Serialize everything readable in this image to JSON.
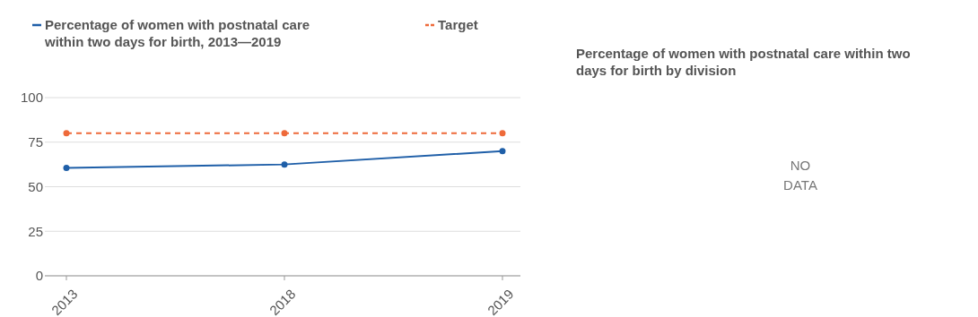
{
  "chart_data": [
    {
      "type": "line",
      "categories": [
        "2013",
        "2018",
        "2019"
      ],
      "series": [
        {
          "name": "Percentage of women with postnatal care within two days for birth, 2013—2019",
          "color": "#1f5fa8",
          "values": [
            60.5,
            62.5,
            70
          ],
          "line_style": "solid"
        },
        {
          "name": "Target",
          "color": "#ee6a3a",
          "values": [
            80,
            80,
            80
          ],
          "line_style": "dashed"
        }
      ],
      "ylim": [
        0,
        100
      ],
      "yticks": [
        0,
        25,
        50,
        75,
        100
      ],
      "grid": "y",
      "legend": "top left",
      "marker": "circle"
    },
    {
      "type": "other",
      "title": "Percentage of women with postnatal care within two days for birth by division",
      "annotations": [
        "NO DATA"
      ]
    }
  ]
}
